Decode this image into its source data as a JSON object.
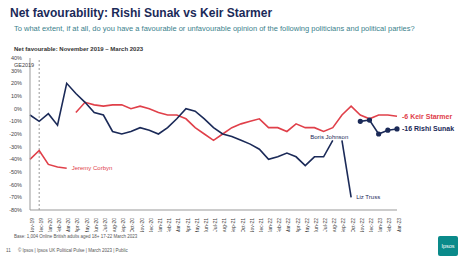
{
  "chart_data": {
    "type": "line",
    "title": "Net favourability: Rishi Sunak vs Keir Starmer",
    "subtitle": "To what extent, if at all, do you have a favourable or unfavourable opinion of the following politicians and political parties?",
    "axis_title": "Net favourable: November 2019 – March 2023",
    "categories": [
      "Nov-19",
      "Dec-19",
      "Jan-20",
      "Feb-20",
      "Mar-20",
      "Apr-20",
      "May-20",
      "Jun-20",
      "Jul-20",
      "Aug-20",
      "Sep-20",
      "Oct-20",
      "Nov-20",
      "Dec-20",
      "Jan-21",
      "Feb-21",
      "Mar-21",
      "Apr-21",
      "May-21",
      "Jun-21",
      "Jul-21",
      "Aug-21",
      "Sep-21",
      "Oct-21",
      "Nov-21",
      "Dec-21",
      "Jan-22",
      "Feb-22",
      "Mar-22",
      "Apr-22",
      "May-22",
      "Jun-22",
      "Jul-22",
      "Aug-22",
      "Sep-22",
      "Oct-22",
      "Nov-22",
      "Dec-22",
      "Jan-23",
      "Feb-23",
      "Mar-23"
    ],
    "series": [
      {
        "name": "Jeremy Corbyn",
        "color": "#e0404a",
        "values": [
          -40,
          -33,
          -44,
          -46,
          -47,
          null,
          null,
          null,
          null,
          null,
          null,
          null,
          null,
          null,
          null,
          null,
          null,
          null,
          null,
          null,
          null,
          null,
          null,
          null,
          null,
          null,
          null,
          null,
          null,
          null,
          null,
          null,
          null,
          null,
          null,
          null,
          null,
          null,
          null,
          null,
          null
        ]
      },
      {
        "name": "Keir Starmer",
        "color": "#e0404a",
        "values": [
          null,
          null,
          null,
          null,
          null,
          -3,
          5,
          3,
          2,
          3,
          3,
          0,
          2,
          0,
          -3,
          -5,
          -5,
          -8,
          -15,
          -20,
          -25,
          -20,
          -15,
          -12,
          -10,
          -8,
          -15,
          -15,
          -18,
          -12,
          -15,
          -15,
          -18,
          -15,
          -5,
          2,
          -5,
          -8,
          -5,
          -5,
          -6
        ]
      },
      {
        "name": "Boris Johnson",
        "color": "#1b2a58",
        "values": [
          -5,
          -10,
          -4,
          -13,
          20,
          12,
          5,
          -3,
          -5,
          -18,
          -20,
          -18,
          -15,
          -17,
          -20,
          -15,
          -8,
          0,
          -2,
          -8,
          -15,
          -20,
          -22,
          -25,
          -28,
          -32,
          -40,
          -38,
          -35,
          -38,
          -45,
          -38,
          -38,
          -25,
          null,
          null,
          null,
          null,
          null,
          null,
          null
        ]
      },
      {
        "name": "Liz Truss",
        "color": "#1b2a58",
        "values": [
          null,
          null,
          null,
          null,
          null,
          null,
          null,
          null,
          null,
          null,
          null,
          null,
          null,
          null,
          null,
          null,
          null,
          null,
          null,
          null,
          null,
          null,
          null,
          null,
          null,
          null,
          null,
          null,
          null,
          null,
          null,
          null,
          null,
          null,
          -25,
          -70,
          null,
          null,
          null,
          null,
          null
        ]
      },
      {
        "name": "Rishi Sunak",
        "color": "#1b2a58",
        "marker": "circle",
        "values": [
          null,
          null,
          null,
          null,
          null,
          null,
          null,
          null,
          null,
          null,
          null,
          null,
          null,
          null,
          null,
          null,
          null,
          null,
          null,
          null,
          null,
          null,
          null,
          null,
          null,
          null,
          null,
          null,
          null,
          null,
          null,
          null,
          null,
          null,
          null,
          null,
          -10,
          -9,
          -20,
          -17,
          -16
        ]
      }
    ],
    "annotations": [
      {
        "text": "Jeremy Corbyn",
        "x": "Mar-20",
        "y": -47,
        "color": "#e0404a"
      },
      {
        "text": "Boris Johnson",
        "x": "May-22",
        "y": -22,
        "color": "#1b2a58"
      },
      {
        "text": "Liz Truss",
        "x": "Oct-22",
        "y": -70,
        "color": "#1b2a58"
      },
      {
        "text": "-6 Keir Starmer",
        "x": "Mar-23",
        "y": -6,
        "color": "#e0404a"
      },
      {
        "text": "-16 Rishi Sunak",
        "x": "Mar-23",
        "y": -16,
        "color": "#1b2a58"
      }
    ],
    "reference_lines": [
      {
        "text": "GE2019",
        "x": "Dec-19"
      }
    ],
    "ylim": [
      -80,
      40
    ],
    "yticks": [
      {
        "value": 40,
        "label": "40%"
      },
      {
        "value": 30,
        "label": "30%"
      },
      {
        "value": 20,
        "label": "20%"
      },
      {
        "value": 10,
        "label": "10%"
      },
      {
        "value": 0,
        "label": "0%"
      },
      {
        "value": -10,
        "label": "-10%"
      },
      {
        "value": -20,
        "label": "-20%"
      },
      {
        "value": -30,
        "label": "-30%"
      },
      {
        "value": -40,
        "label": "-40%"
      },
      {
        "value": -50,
        "label": "-50%"
      },
      {
        "value": -60,
        "label": "-60%"
      },
      {
        "value": -70,
        "label": "-70%"
      },
      {
        "value": -80,
        "label": "-80%"
      }
    ],
    "grid": false,
    "footer": "Base: 1,004 Online British adults aged 18+ 17-22 March 2023",
    "source": "© Ipsos | Ipsos UK Political Pulse | March 2023 | Public",
    "page": "11",
    "logo": "Ipsos"
  }
}
